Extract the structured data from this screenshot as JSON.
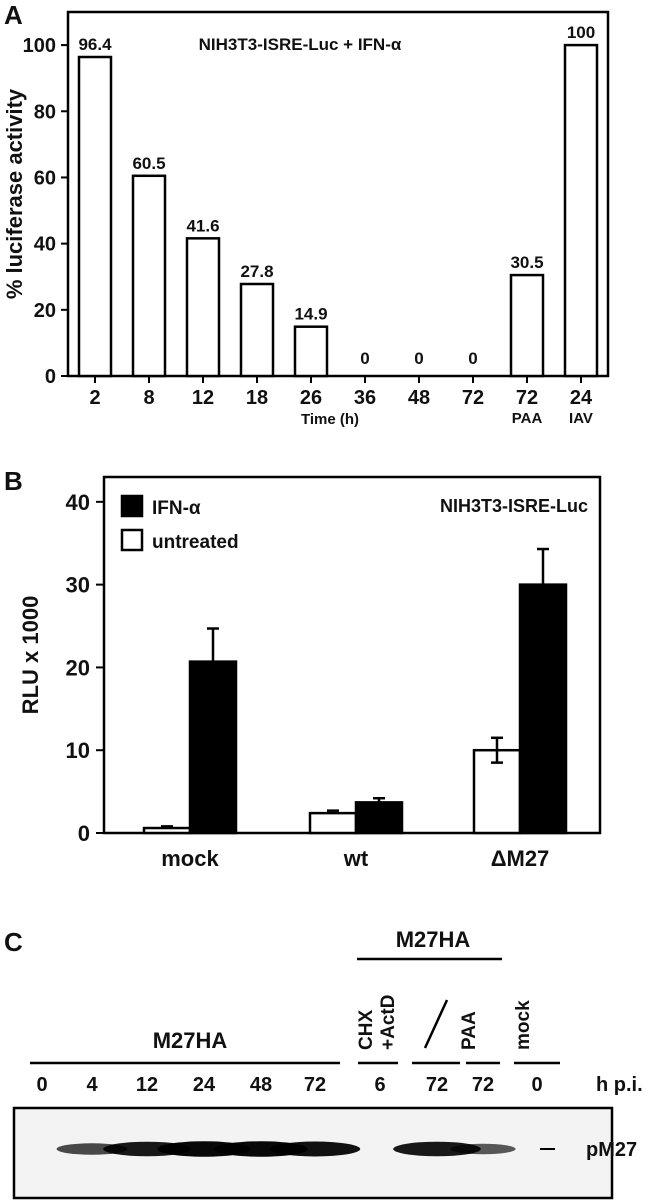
{
  "panels": {
    "a": "A",
    "b": "B",
    "c": "C"
  },
  "chart_data": [
    {
      "type": "bar",
      "title": "NIH3T3-ISRE-Luc + IFN-α",
      "xlabel": "Time (h)",
      "ylabel": "% luciferase activity",
      "ylim": [
        0,
        110
      ],
      "yticks": [
        0,
        20,
        40,
        60,
        80,
        100
      ],
      "categories": [
        {
          "label": "2",
          "sub": ""
        },
        {
          "label": "8",
          "sub": ""
        },
        {
          "label": "12",
          "sub": ""
        },
        {
          "label": "18",
          "sub": ""
        },
        {
          "label": "26",
          "sub": ""
        },
        {
          "label": "36",
          "sub": ""
        },
        {
          "label": "48",
          "sub": ""
        },
        {
          "label": "72",
          "sub": ""
        },
        {
          "label": "72",
          "sub": "PAA"
        },
        {
          "label": "24",
          "sub": "IAV"
        }
      ],
      "values": [
        96.4,
        60.5,
        41.6,
        27.8,
        14.9,
        0,
        0,
        0,
        30.5,
        100
      ],
      "value_labels": [
        "96.4",
        "60.5",
        "41.6",
        "27.8",
        "14.9",
        "0",
        "0",
        "0",
        "30.5",
        "100"
      ],
      "bar_color": "#ffffff"
    },
    {
      "type": "bar",
      "title": "NIH3T3-ISRE-Luc",
      "xlabel": "",
      "ylabel": "RLU x 1000",
      "ylim": [
        0,
        43
      ],
      "yticks": [
        0,
        10,
        20,
        30,
        40
      ],
      "legend_position": "top-left",
      "categories": [
        "mock",
        "wt",
        "ΔM27"
      ],
      "series": [
        {
          "name": "untreated",
          "color": "#ffffff",
          "values": [
            0.6,
            2.4,
            10.0
          ],
          "errors": [
            0.2,
            0.3,
            1.5
          ]
        },
        {
          "name": "IFN-α",
          "color": "#000000",
          "values": [
            20.7,
            3.7,
            30.0
          ],
          "errors": [
            4.0,
            0.5,
            4.3
          ]
        }
      ]
    }
  ],
  "blot": {
    "group_main": "M27HA",
    "group_right": "M27HA",
    "lanes": [
      {
        "top": "",
        "time": "0",
        "band": 0.0
      },
      {
        "top": "",
        "time": "4",
        "band": 0.55
      },
      {
        "top": "",
        "time": "12",
        "band": 0.85
      },
      {
        "top": "",
        "time": "24",
        "band": 0.95
      },
      {
        "top": "",
        "time": "48",
        "band": 0.95
      },
      {
        "top": "",
        "time": "72",
        "band": 0.9
      },
      {
        "top": "CHX\n+ActD",
        "time": "6",
        "band": 0.0
      },
      {
        "top": "—",
        "time": "72",
        "band": 0.85
      },
      {
        "top": "PAA",
        "time": "72",
        "band": 0.45
      },
      {
        "top": "mock",
        "time": "0",
        "band": 0.0
      }
    ],
    "time_unit": "h p.i.",
    "band_label": "pM27"
  }
}
